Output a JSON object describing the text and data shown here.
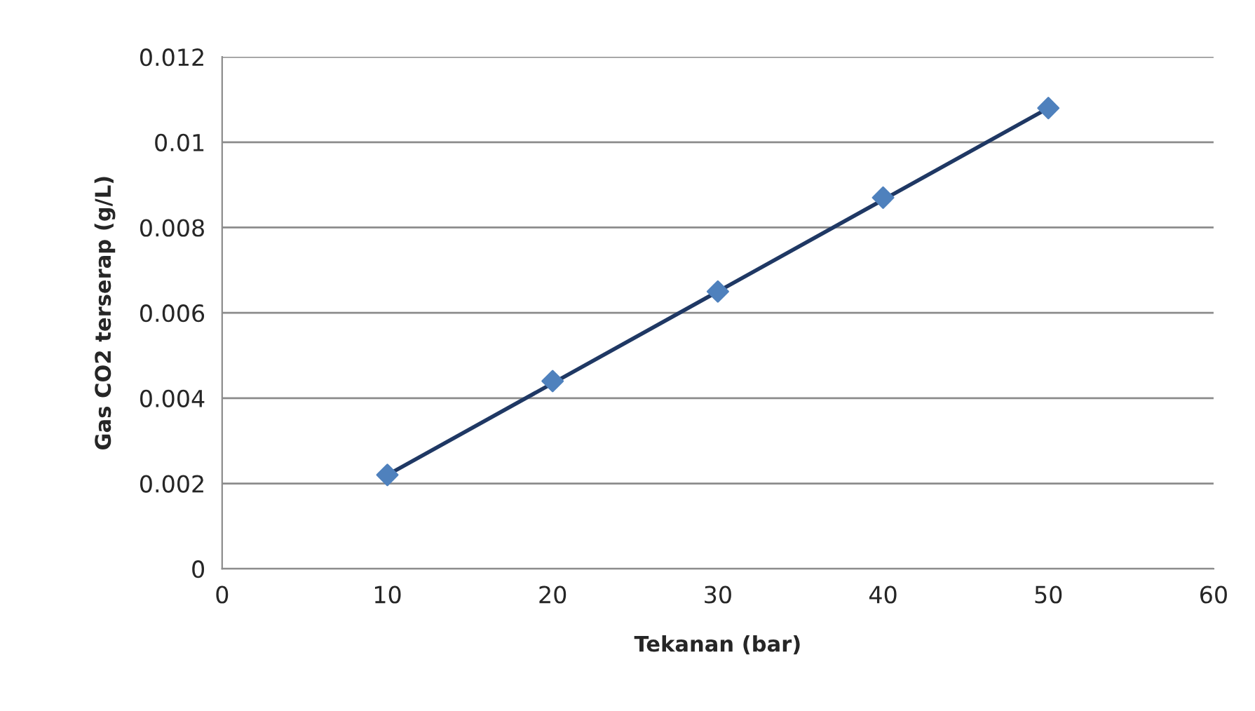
{
  "chart_data": {
    "type": "scatter",
    "xlabel": "Tekanan (bar)",
    "ylabel": "Gas CO2 terserap (g/L)",
    "x": [
      10,
      20,
      30,
      40,
      50
    ],
    "series": [
      {
        "type": "line",
        "color": "#1f3864",
        "x": [
          10,
          50
        ],
        "values": [
          0.0022,
          0.0108
        ],
        "marker": "none"
      },
      {
        "color": "#4f81bd",
        "values": [
          0.0022,
          0.0044,
          0.0065,
          0.0087,
          0.0108
        ],
        "marker": "diamond"
      }
    ],
    "xlim": [
      0,
      60
    ],
    "xticks": [
      0,
      10,
      20,
      30,
      40,
      50,
      60
    ],
    "ylim": [
      0,
      0.012
    ],
    "yticks": [
      0,
      0.002,
      0.004,
      0.006,
      0.008,
      0.01,
      0.012
    ],
    "grid": "y",
    "legend": false
  }
}
